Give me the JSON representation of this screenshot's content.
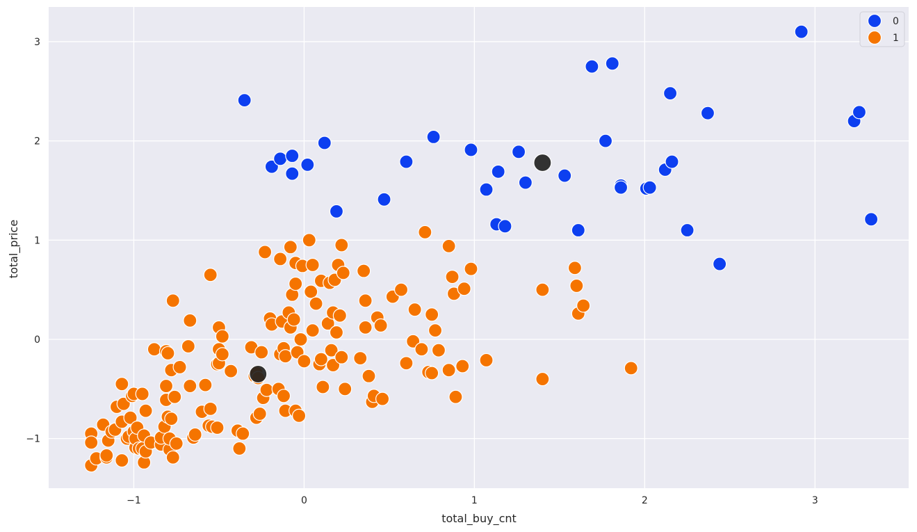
{
  "chart_data": {
    "type": "scatter",
    "xlabel": "total_buy_cnt",
    "ylabel": "total_price",
    "xlim": [
      -1.5,
      3.55
    ],
    "ylim": [
      -1.5,
      3.35
    ],
    "xticks": [
      -1,
      0,
      1,
      2,
      3
    ],
    "yticks": [
      -1,
      0,
      1,
      2,
      3
    ],
    "xtick_labels": [
      "−1",
      "0",
      "1",
      "2",
      "3"
    ],
    "ytick_labels": [
      "−1",
      "0",
      "1",
      "2",
      "3"
    ],
    "grid": true,
    "background": "#eaeaf2",
    "legend_position": "top-right",
    "series": [
      {
        "name": "0",
        "color": "#0d3ff0",
        "points": [
          [
            -0.35,
            2.41
          ],
          [
            -0.19,
            1.74
          ],
          [
            -0.14,
            1.82
          ],
          [
            -0.07,
            1.85
          ],
          [
            -0.07,
            1.67
          ],
          [
            0.02,
            1.76
          ],
          [
            0.12,
            1.98
          ],
          [
            0.19,
            1.29
          ],
          [
            0.47,
            1.41
          ],
          [
            0.6,
            1.79
          ],
          [
            0.76,
            2.04
          ],
          [
            0.98,
            1.91
          ],
          [
            1.07,
            1.51
          ],
          [
            1.14,
            1.69
          ],
          [
            1.13,
            1.16
          ],
          [
            1.18,
            1.14
          ],
          [
            1.26,
            1.89
          ],
          [
            1.3,
            1.58
          ],
          [
            1.53,
            1.65
          ],
          [
            1.61,
            1.1
          ],
          [
            1.69,
            2.75
          ],
          [
            1.77,
            2.0
          ],
          [
            1.81,
            2.78
          ],
          [
            1.86,
            1.55
          ],
          [
            1.86,
            1.53
          ],
          [
            2.01,
            1.52
          ],
          [
            2.03,
            1.53
          ],
          [
            2.12,
            1.71
          ],
          [
            2.15,
            2.48
          ],
          [
            2.16,
            1.79
          ],
          [
            2.25,
            1.1
          ],
          [
            2.37,
            2.28
          ],
          [
            2.44,
            0.76
          ],
          [
            2.92,
            3.1
          ],
          [
            3.23,
            2.2
          ],
          [
            3.26,
            2.29
          ],
          [
            3.33,
            1.21
          ]
        ]
      },
      {
        "name": "1",
        "color": "#f57400",
        "points": [
          [
            -1.25,
            -0.95
          ],
          [
            -1.25,
            -1.04
          ],
          [
            -1.25,
            -1.27
          ],
          [
            -1.22,
            -1.2
          ],
          [
            -1.18,
            -0.86
          ],
          [
            -1.16,
            -1.19
          ],
          [
            -1.16,
            -1.17
          ],
          [
            -1.15,
            -1.02
          ],
          [
            -1.13,
            -0.93
          ],
          [
            -1.11,
            -0.91
          ],
          [
            -1.1,
            -0.68
          ],
          [
            -1.07,
            -0.83
          ],
          [
            -1.07,
            -0.45
          ],
          [
            -1.07,
            -1.22
          ],
          [
            -1.06,
            -0.65
          ],
          [
            -1.04,
            -1.0
          ],
          [
            -1.03,
            -0.98
          ],
          [
            -1.02,
            -0.79
          ],
          [
            -1.01,
            -0.57
          ],
          [
            -1.0,
            -0.55
          ],
          [
            -1.0,
            -0.93
          ],
          [
            -0.99,
            -1.09
          ],
          [
            -0.99,
            -1.0
          ],
          [
            -0.98,
            -0.89
          ],
          [
            -0.97,
            -1.1
          ],
          [
            -0.95,
            -1.1
          ],
          [
            -0.95,
            -0.55
          ],
          [
            -0.94,
            -1.24
          ],
          [
            -0.94,
            -0.97
          ],
          [
            -0.93,
            -0.72
          ],
          [
            -0.93,
            -1.13
          ],
          [
            -0.9,
            -1.04
          ],
          [
            -0.88,
            -0.1
          ],
          [
            -0.84,
            -1.06
          ],
          [
            -0.84,
            -0.99
          ],
          [
            -0.82,
            -0.88
          ],
          [
            -0.81,
            -0.47
          ],
          [
            -0.81,
            -0.61
          ],
          [
            -0.81,
            -0.12
          ],
          [
            -0.8,
            -0.14
          ],
          [
            -0.8,
            -0.78
          ],
          [
            -0.79,
            -1.11
          ],
          [
            -0.79,
            -1.0
          ],
          [
            -0.78,
            -0.31
          ],
          [
            -0.78,
            -0.8
          ],
          [
            -0.77,
            0.39
          ],
          [
            -0.77,
            -1.19
          ],
          [
            -0.76,
            -0.58
          ],
          [
            -0.75,
            -1.05
          ],
          [
            -0.73,
            -0.28
          ],
          [
            -0.68,
            -0.07
          ],
          [
            -0.67,
            -0.47
          ],
          [
            -0.67,
            0.19
          ],
          [
            -0.65,
            -0.99
          ],
          [
            -0.64,
            -0.96
          ],
          [
            -0.6,
            -0.73
          ],
          [
            -0.58,
            -0.46
          ],
          [
            -0.56,
            -0.87
          ],
          [
            -0.55,
            -0.7
          ],
          [
            -0.55,
            0.65
          ],
          [
            -0.54,
            -0.88
          ],
          [
            -0.51,
            -0.89
          ],
          [
            -0.51,
            -0.25
          ],
          [
            -0.5,
            0.12
          ],
          [
            -0.5,
            -0.1
          ],
          [
            -0.5,
            -0.24
          ],
          [
            -0.48,
            -0.15
          ],
          [
            -0.48,
            0.03
          ],
          [
            -0.43,
            -0.32
          ],
          [
            -0.39,
            -0.92
          ],
          [
            -0.38,
            -1.1
          ],
          [
            -0.36,
            -0.95
          ],
          [
            -0.31,
            -0.08
          ],
          [
            -0.29,
            -0.37
          ],
          [
            -0.28,
            -0.34
          ],
          [
            -0.28,
            -0.79
          ],
          [
            -0.27,
            -0.39
          ],
          [
            -0.26,
            -0.75
          ],
          [
            -0.25,
            -0.13
          ],
          [
            -0.24,
            -0.59
          ],
          [
            -0.23,
            0.88
          ],
          [
            -0.22,
            -0.51
          ],
          [
            -0.2,
            0.21
          ],
          [
            -0.19,
            0.15
          ],
          [
            -0.15,
            -0.5
          ],
          [
            -0.14,
            0.81
          ],
          [
            -0.14,
            -0.15
          ],
          [
            -0.13,
            0.18
          ],
          [
            -0.12,
            -0.57
          ],
          [
            -0.12,
            -0.09
          ],
          [
            -0.11,
            -0.72
          ],
          [
            -0.11,
            -0.17
          ],
          [
            -0.09,
            0.27
          ],
          [
            -0.08,
            0.12
          ],
          [
            -0.08,
            0.93
          ],
          [
            -0.07,
            0.45
          ],
          [
            -0.06,
            0.2
          ],
          [
            -0.05,
            0.56
          ],
          [
            -0.05,
            0.77
          ],
          [
            -0.05,
            -0.72
          ],
          [
            -0.04,
            -0.13
          ],
          [
            -0.03,
            -0.77
          ],
          [
            -0.02,
            0.0
          ],
          [
            -0.01,
            0.74
          ],
          [
            0.0,
            -0.22
          ],
          [
            0.03,
            1.0
          ],
          [
            0.04,
            0.48
          ],
          [
            0.05,
            0.75
          ],
          [
            0.05,
            0.09
          ],
          [
            0.07,
            0.36
          ],
          [
            0.09,
            -0.25
          ],
          [
            0.1,
            0.59
          ],
          [
            0.1,
            -0.2
          ],
          [
            0.11,
            -0.48
          ],
          [
            0.14,
            0.16
          ],
          [
            0.15,
            0.57
          ],
          [
            0.16,
            -0.11
          ],
          [
            0.17,
            0.27
          ],
          [
            0.17,
            -0.26
          ],
          [
            0.18,
            0.6
          ],
          [
            0.19,
            0.07
          ],
          [
            0.2,
            0.75
          ],
          [
            0.21,
            0.24
          ],
          [
            0.22,
            -0.18
          ],
          [
            0.22,
            0.95
          ],
          [
            0.23,
            0.67
          ],
          [
            0.24,
            -0.5
          ],
          [
            0.33,
            -0.19
          ],
          [
            0.35,
            0.69
          ],
          [
            0.36,
            0.39
          ],
          [
            0.36,
            0.12
          ],
          [
            0.38,
            -0.37
          ],
          [
            0.4,
            -0.63
          ],
          [
            0.41,
            -0.57
          ],
          [
            0.43,
            0.22
          ],
          [
            0.45,
            0.14
          ],
          [
            0.46,
            -0.6
          ],
          [
            0.52,
            0.43
          ],
          [
            0.57,
            0.5
          ],
          [
            0.6,
            -0.24
          ],
          [
            0.64,
            -0.02
          ],
          [
            0.65,
            0.3
          ],
          [
            0.69,
            -0.1
          ],
          [
            0.71,
            1.08
          ],
          [
            0.73,
            -0.33
          ],
          [
            0.75,
            0.25
          ],
          [
            0.75,
            -0.34
          ],
          [
            0.77,
            0.09
          ],
          [
            0.79,
            -0.11
          ],
          [
            0.85,
            0.94
          ],
          [
            0.85,
            -0.31
          ],
          [
            0.87,
            0.63
          ],
          [
            0.88,
            0.46
          ],
          [
            0.89,
            -0.58
          ],
          [
            0.93,
            -0.27
          ],
          [
            0.94,
            0.51
          ],
          [
            0.98,
            0.71
          ],
          [
            1.07,
            -0.21
          ],
          [
            1.4,
            0.5
          ],
          [
            1.4,
            -0.4
          ],
          [
            1.59,
            0.72
          ],
          [
            1.6,
            0.54
          ],
          [
            1.61,
            0.26
          ],
          [
            1.64,
            0.34
          ],
          [
            1.92,
            -0.29
          ]
        ]
      }
    ],
    "centroids": {
      "color": "#222222",
      "points": [
        [
          1.4,
          1.78
        ],
        [
          -0.27,
          -0.35
        ]
      ]
    }
  }
}
